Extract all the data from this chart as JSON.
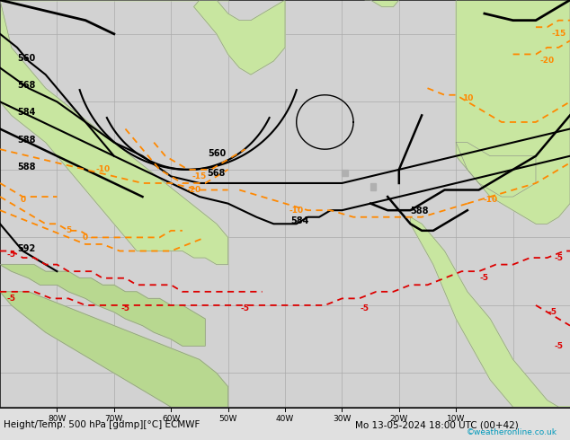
{
  "title_left": "Height/Temp. 500 hPa [gdmp][°C] ECMWF",
  "title_right": "Mo 13-05-2024 18:00 UTC (00+42)",
  "copyright": "©weatheronline.co.uk",
  "ocean_color": "#d2d2d2",
  "land_color_green": "#c8e6a0",
  "land_color_dark": "#a8c880",
  "grid_color": "#aaaaaa",
  "border_color": "#888888",
  "bottom_bar_color": "#e0e0e0",
  "cyan_text": "#0099bb",
  "figsize": [
    6.34,
    4.9
  ],
  "dpi": 100,
  "xlim": [
    -90,
    10
  ],
  "ylim": [
    5,
    65
  ],
  "lon_ticks": [
    -80,
    -70,
    -60,
    -50,
    -40,
    -30,
    -20,
    -10
  ],
  "lon_labels": [
    "80W",
    "70W",
    "60W",
    "50W",
    "40W",
    "30W",
    "20W",
    "10W"
  ]
}
